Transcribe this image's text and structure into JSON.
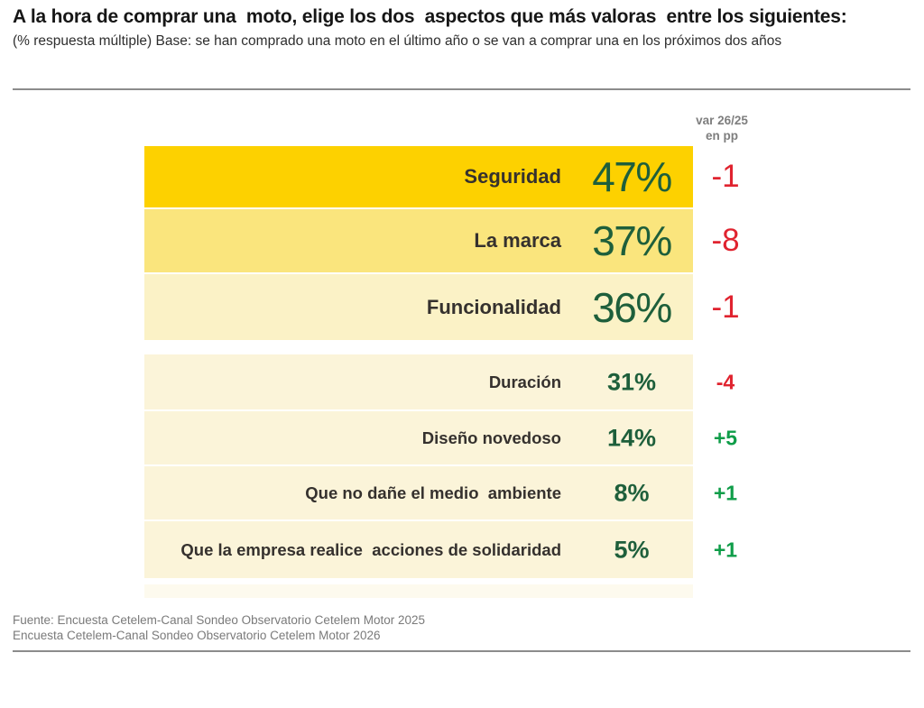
{
  "page": {
    "title": "A la hora de comprar una  moto, elige los dos  aspectos que más valoras  entre los siguientes:",
    "subtitle": "(% respuesta múltiple) Base: se han comprado una moto en el último año o se van a comprar una en los próximos dos años",
    "source_line1": "Fuente: Encuesta Cetelem-Canal Sondeo Observatorio Cetelem Motor 2025",
    "source_line2": "Encuesta Cetelem-Canal Sondeo Observatorio Cetelem Motor 2026"
  },
  "chart_data": {
    "type": "bar",
    "title": "A la hora de comprar una moto, elige los dos aspectos que más valoras entre los siguientes:",
    "subtitle": "(% respuesta múltiple) Base: se han comprado una moto en el último año o se van a comprar una en los próximos dos años",
    "unit": "%",
    "variation_header": {
      "line1": "var 26/25",
      "line2": "en pp"
    },
    "categories": [
      "Seguridad",
      "La marca",
      "Funcionalidad",
      "Duración",
      "Diseño novedoso",
      "Que no dañe el medio  ambiente",
      "Que la empresa realice  acciones de solidaridad"
    ],
    "values": [
      47,
      37,
      36,
      31,
      14,
      8,
      5
    ],
    "value_labels": [
      "47%",
      "37%",
      "36%",
      "31%",
      "14%",
      "8%",
      "5%"
    ],
    "variations": [
      -1,
      -8,
      -1,
      -4,
      5,
      1,
      1
    ],
    "variation_labels": [
      "-1",
      "-8",
      "-1",
      "-4",
      "+5",
      "+1",
      "+1"
    ],
    "groups": [
      "top",
      "top",
      "top",
      "secondary",
      "secondary",
      "secondary",
      "secondary"
    ],
    "band_colors": [
      "#fdd100",
      "#fae57d",
      "#fbf2c6",
      "#fbf4d9",
      "#fbf4d9",
      "#fbf4d9",
      "#fbf4d9"
    ],
    "variation_colors": [
      "#e0232f",
      "#e0232f",
      "#e0232f",
      "#e0232f",
      "#0f9d49",
      "#0f9d49",
      "#0f9d49"
    ],
    "legend_position": "none",
    "layout_note": "horizontal bands of equal width, not scaled to value; top 3 ranked answers highlighted with stronger yellows",
    "sources": [
      "Fuente: Encuesta Cetelem-Canal Sondeo Observatorio Cetelem Motor 2025",
      "Encuesta Cetelem-Canal Sondeo Observatorio Cetelem Motor 2026"
    ]
  },
  "colors": {
    "value_text": "#1e5f3b",
    "label_text": "#35312e",
    "negative": "#e0232f",
    "positive": "#0f9d49",
    "muted_gray": "#7e7e7e",
    "divider": "#8c8c8c",
    "band_gold": "#fdd100",
    "band_medium_yellow": "#fae57d",
    "band_pale_yellow": "#fbf2c6",
    "band_cream": "#fbf4d9"
  }
}
